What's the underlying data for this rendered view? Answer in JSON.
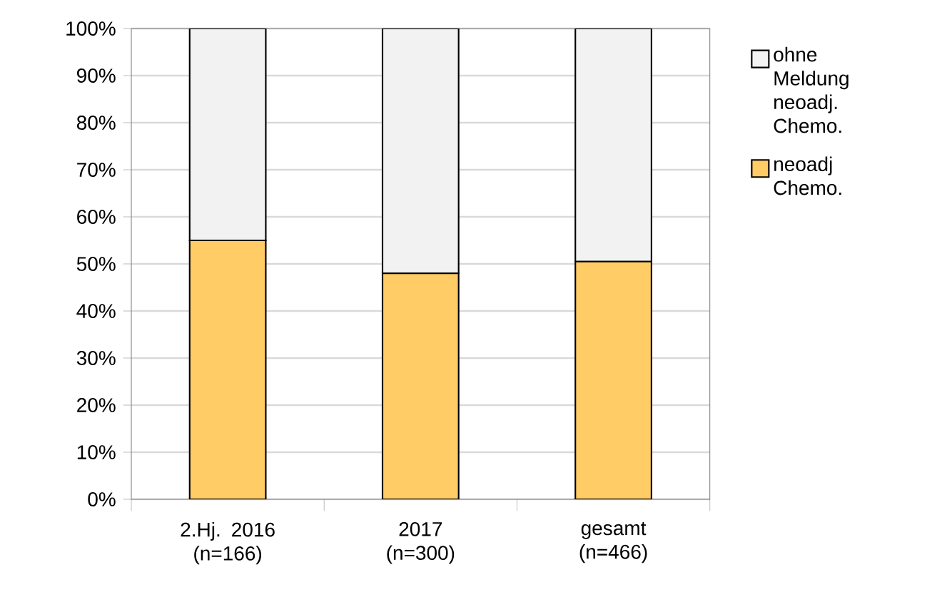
{
  "chart_data": {
    "type": "bar",
    "stacked": true,
    "categories": [
      "2.Hj. 2016 (n=166)",
      "2017 (n=300)",
      "gesamt (n=466)"
    ],
    "series": [
      {
        "name": "neoadj Chemo.",
        "color": "#ffcc66",
        "values": [
          55,
          48,
          50.5
        ]
      },
      {
        "name": "ohne Meldung neoadj. Chemo.",
        "color": "#f2f2f2",
        "values": [
          45,
          52,
          49.5
        ]
      }
    ],
    "ylim": [
      0,
      100
    ],
    "yticks": [
      {
        "value": 0,
        "label": "0%"
      },
      {
        "value": 10,
        "label": "10%"
      },
      {
        "value": 20,
        "label": "20%"
      },
      {
        "value": 30,
        "label": "30%"
      },
      {
        "value": 40,
        "label": "40%"
      },
      {
        "value": 50,
        "label": "50%"
      },
      {
        "value": 60,
        "label": "60%"
      },
      {
        "value": 70,
        "label": "70%"
      },
      {
        "value": 80,
        "label": "80%"
      },
      {
        "value": 90,
        "label": "90%"
      },
      {
        "value": 100,
        "label": "100%"
      }
    ],
    "grid": "y",
    "legend": "right"
  }
}
